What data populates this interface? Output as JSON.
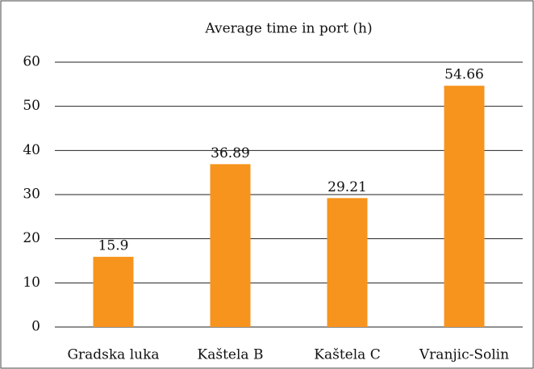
{
  "chart_data": {
    "type": "bar",
    "title": "Average time in port (h)",
    "categories": [
      "Gradska luka",
      "Kaštela B",
      "Kaštela C",
      "Vranjic-Solin"
    ],
    "values": [
      15.9,
      36.89,
      29.21,
      54.66
    ],
    "color": "#f7941d",
    "ylim": [
      0,
      60
    ],
    "yticks": [
      0,
      10,
      20,
      30,
      40,
      50,
      60
    ],
    "grid": true
  }
}
